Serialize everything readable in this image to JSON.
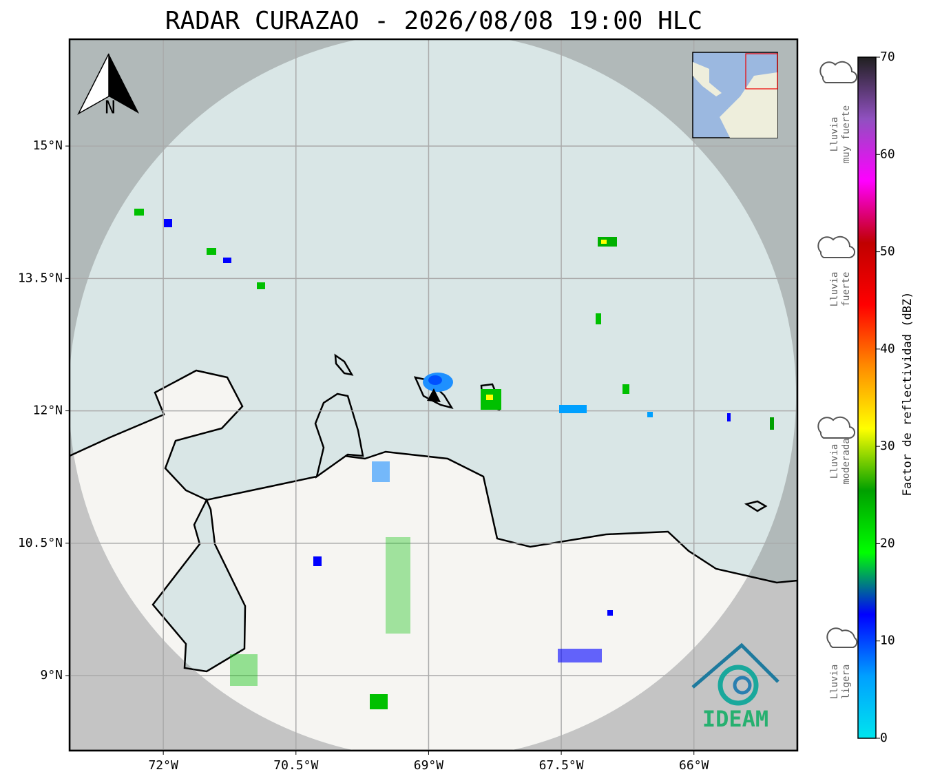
{
  "map": {
    "title": "RADAR CURAZAO - 2026/08/08 19:00 HLC",
    "xlim": [
      -73.06,
      -64.83
    ],
    "ylim": [
      8.15,
      16.21
    ],
    "xticks": [
      {
        "value": -72,
        "label": "72°W"
      },
      {
        "value": -70.5,
        "label": "70.5°W"
      },
      {
        "value": -69,
        "label": "69°W"
      },
      {
        "value": -67.5,
        "label": "67.5°W"
      },
      {
        "value": -66,
        "label": "66°W"
      }
    ],
    "yticks": [
      {
        "value": 15,
        "label": "15°N"
      },
      {
        "value": 13.5,
        "label": "13.5°N"
      },
      {
        "value": 12,
        "label": "12°N"
      },
      {
        "value": 10.5,
        "label": "10.5°N"
      },
      {
        "value": 9,
        "label": "9°N"
      }
    ],
    "grid": true,
    "north": "N",
    "logo": "IDEAM"
  },
  "colorbar": {
    "label": "Factor de reflectividad (dBZ)",
    "lim": [
      0,
      70
    ],
    "ticks": [
      0,
      10,
      20,
      30,
      40,
      50,
      60,
      70
    ],
    "colors": [
      "#00e5ee",
      "#00a0ff",
      "#0000ff",
      "#00ff00",
      "#00a000",
      "#ffff00",
      "#ff8c00",
      "#ff0000",
      "#c00000",
      "#ff00ff",
      "#9050c0",
      "#202020"
    ]
  },
  "legend": [
    {
      "lines": [
        "Lluvia",
        "muy fuerte"
      ]
    },
    {
      "lines": [
        "Lluvia",
        "fuerte"
      ]
    },
    {
      "lines": [
        "Lluvia",
        "moderada"
      ]
    },
    {
      "lines": [
        "Lluvia",
        "ligera"
      ]
    }
  ]
}
